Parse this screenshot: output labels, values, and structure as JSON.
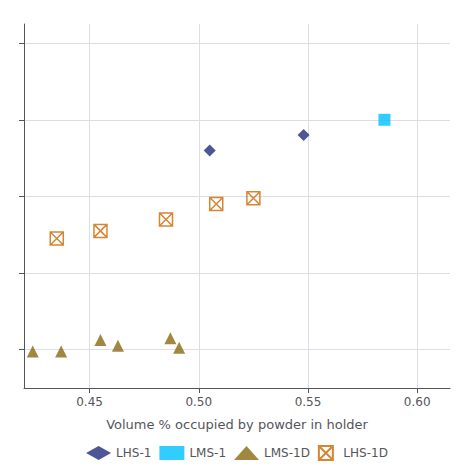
{
  "chart_data": {
    "type": "scatter",
    "xlabel": "Volume % occupied by powder in holder",
    "xlim": [
      0.42,
      0.615
    ],
    "xticks": [
      0.45,
      {
        "value": 0.5,
        "label": "0.50"
      },
      0.55,
      {
        "value": 0.6,
        "label": "0.60"
      }
    ],
    "ylim": [
      0.1,
      1.05
    ],
    "yticks": [
      0.2,
      0.4,
      0.6,
      0.8,
      1.0
    ],
    "tick_labels": "x",
    "grid": true,
    "legend": "bottom",
    "series": [
      {
        "name": "LHS-1",
        "color": "#1f2d7b",
        "marker": "diamond",
        "x": [
          0.505,
          0.548
        ],
        "values": [
          0.72,
          0.76
        ]
      },
      {
        "name": "LMS-1",
        "color": "#00bfff",
        "marker": "square",
        "x": [
          0.585
        ],
        "values": [
          0.8
        ]
      },
      {
        "name": "LMS-1D",
        "color": "#8B6914",
        "marker": "triangle",
        "x": [
          0.424,
          0.437,
          0.455,
          0.463,
          0.487,
          0.491
        ],
        "values": [
          0.195,
          0.195,
          0.225,
          0.21,
          0.23,
          0.205
        ]
      },
      {
        "name": "LHS-1D",
        "color": "#cc6600",
        "marker": "square-x",
        "x": [
          0.435,
          0.455,
          0.485,
          0.508,
          0.525
        ],
        "values": [
          0.49,
          0.51,
          0.54,
          0.58,
          0.595
        ]
      }
    ]
  }
}
